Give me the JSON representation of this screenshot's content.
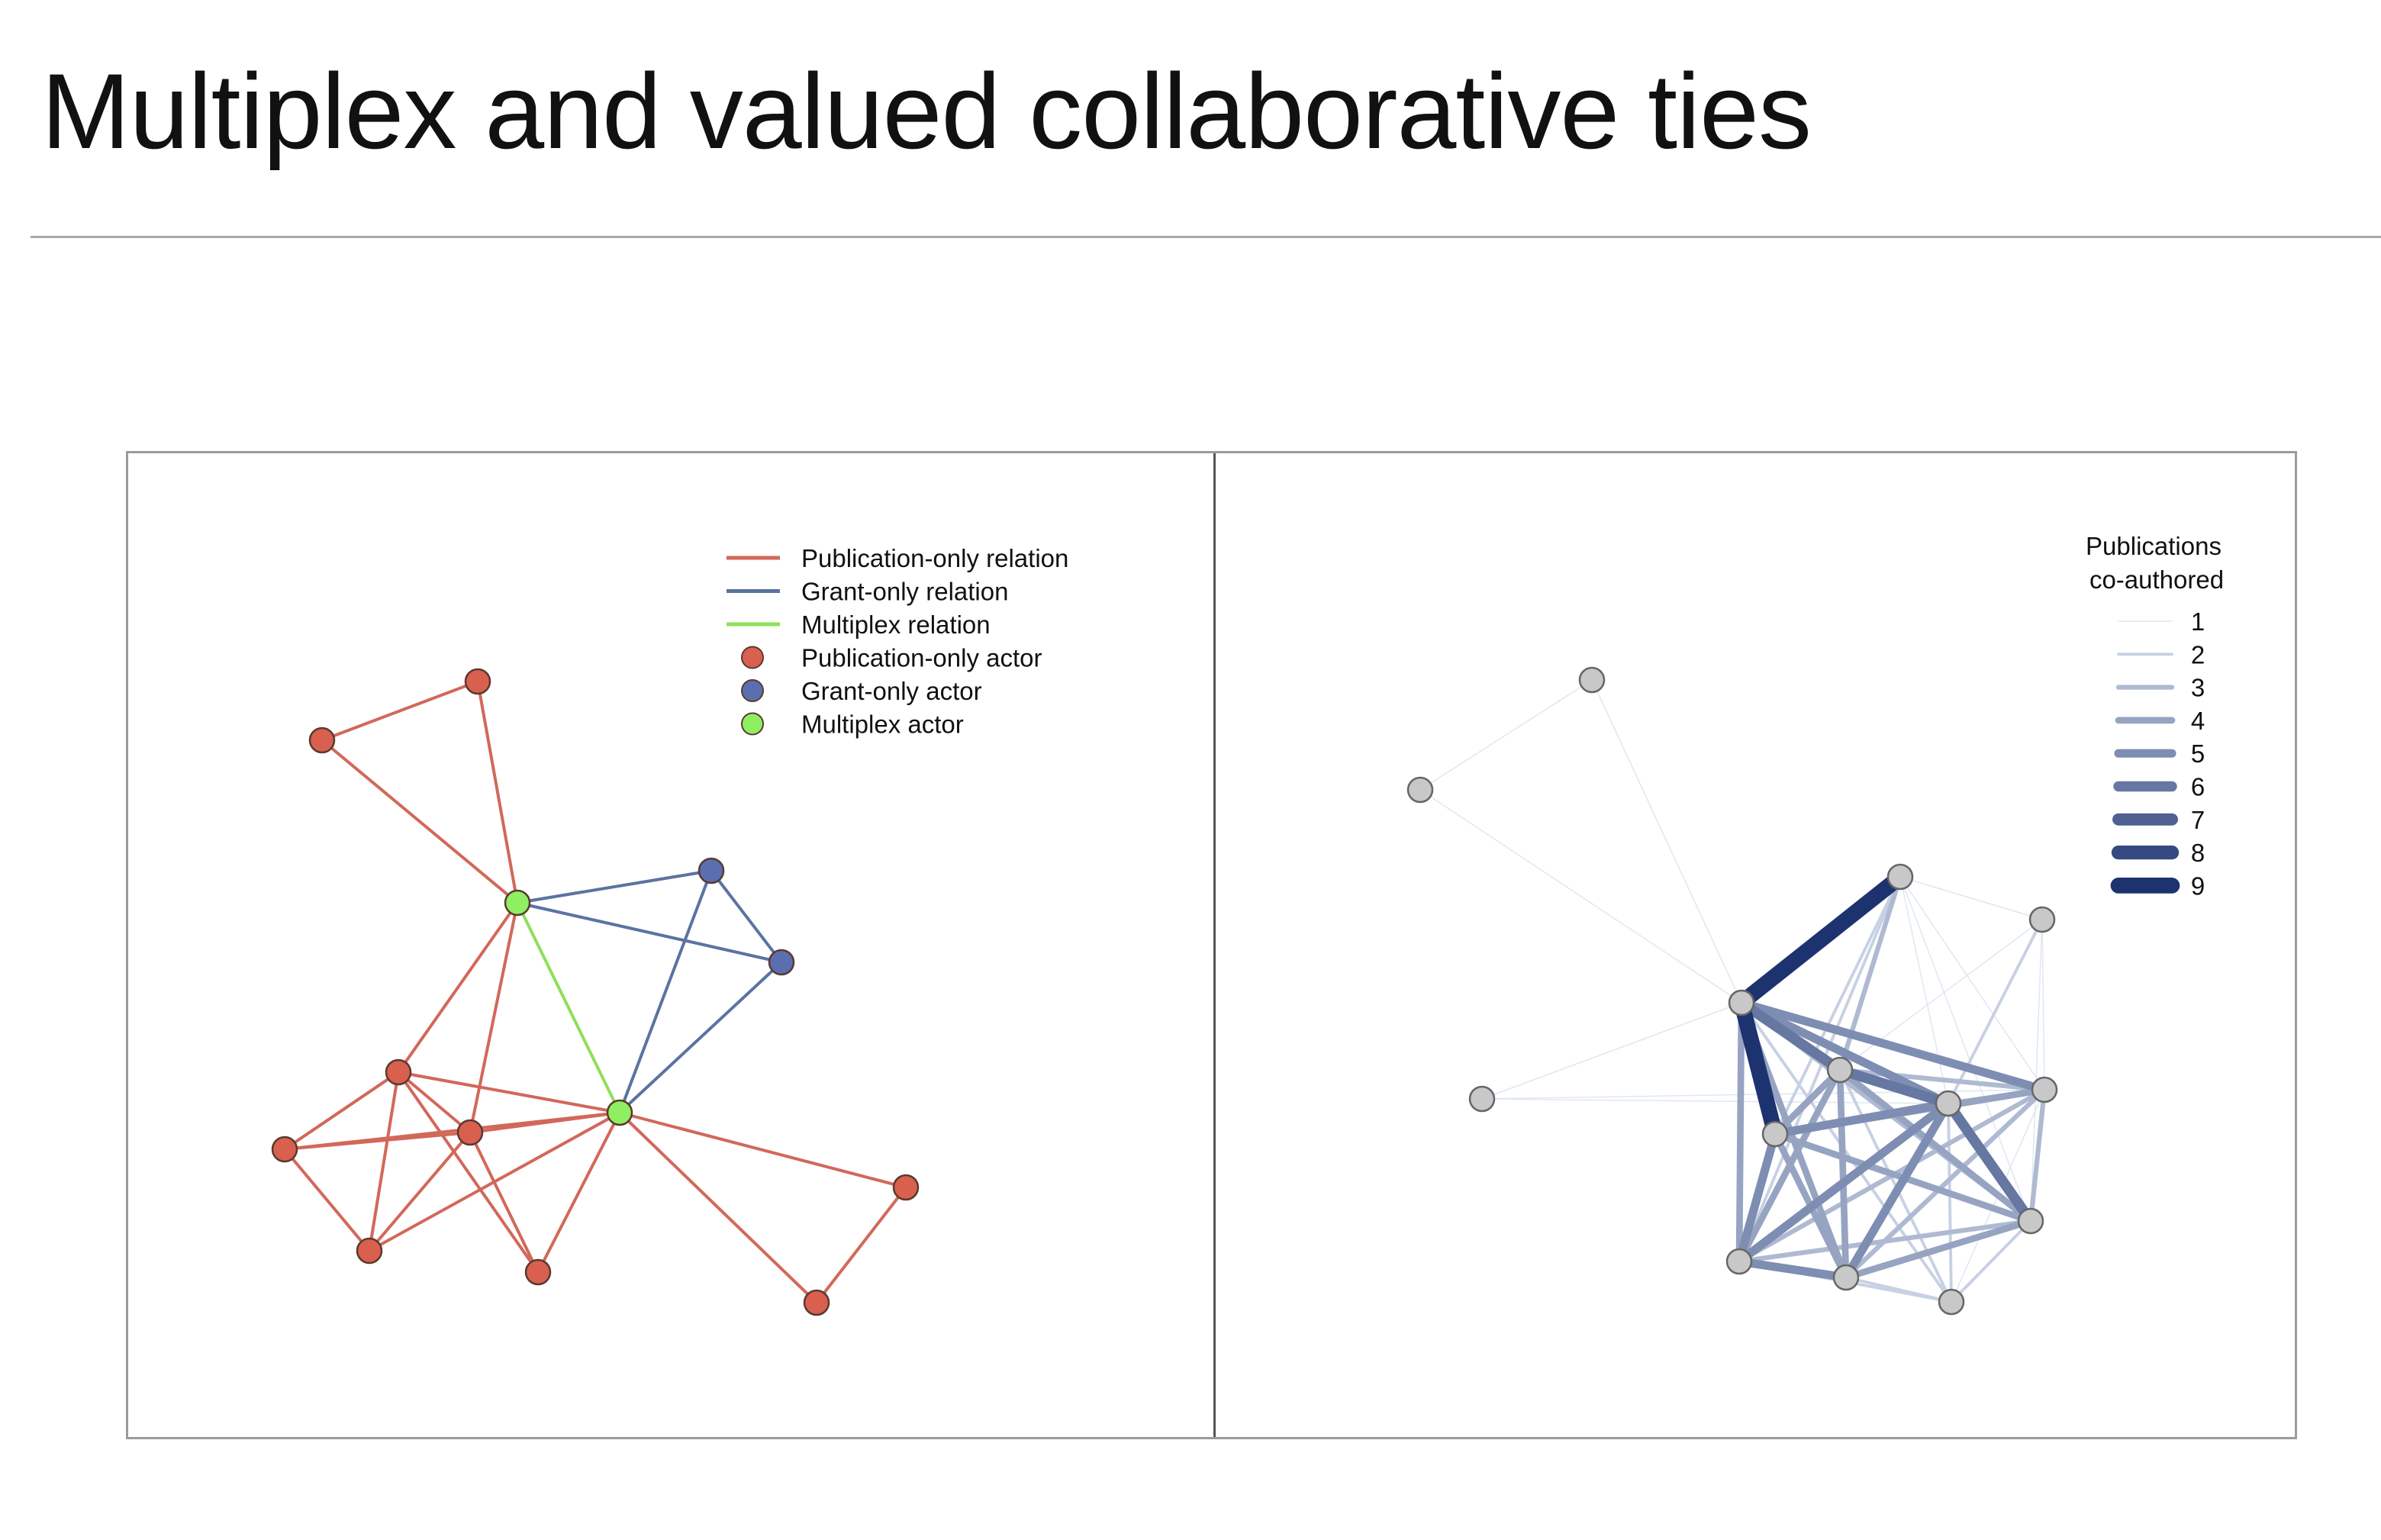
{
  "slide": {
    "title": "Multiplex and valued collaborative ties"
  },
  "left_network": {
    "legend": [
      {
        "label": "Publication-only relation",
        "kind": "line",
        "color": "#d2685a"
      },
      {
        "label": "Grant-only relation",
        "kind": "line",
        "color": "#5a74a0"
      },
      {
        "label": "Multiplex relation",
        "kind": "line",
        "color": "#8ee05a"
      },
      {
        "label": "Publication-only actor",
        "kind": "dot",
        "color": "#d9604e"
      },
      {
        "label": "Grant-only actor",
        "kind": "dot",
        "color": "#5b6fb0"
      },
      {
        "label": "Multiplex actor",
        "kind": "dot",
        "color": "#8ef060"
      }
    ],
    "colors": {
      "publication_edge": "#d2685a",
      "grant_edge": "#5a74a0",
      "multiplex_edge": "#8ee05a",
      "publication_node": "#d9604e",
      "grant_node": "#5b6fb0",
      "multiplex_node": "#8ef060"
    }
  },
  "right_network": {
    "legend_title_line1": "Publications",
    "legend_title_line2": "co-authored",
    "legend_items": [
      "1",
      "2",
      "3",
      "4",
      "5",
      "6",
      "7",
      "8",
      "9"
    ],
    "colors": {
      "node_fill": "#c8c8c8",
      "edge_light": "#dfe7f3",
      "edge_dark": "#1d3370"
    }
  }
}
